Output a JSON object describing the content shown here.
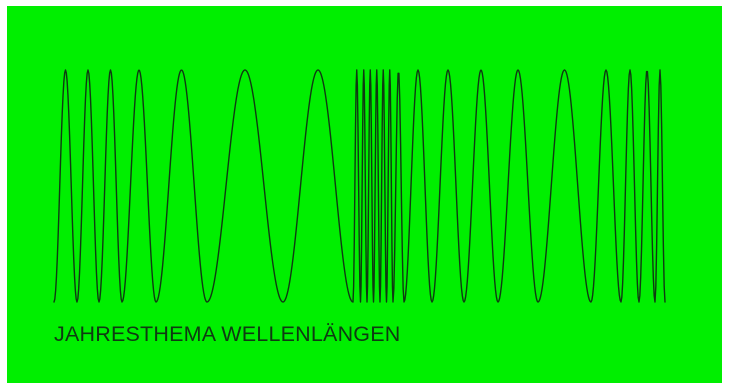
{
  "poster": {
    "background_color": "#00ef00",
    "ink_color": "#0f3a12",
    "caption": "JAHRESTHEMA WELLENLÄNGEN",
    "artwork": "sine-waves-of-varying-wavelength"
  }
}
